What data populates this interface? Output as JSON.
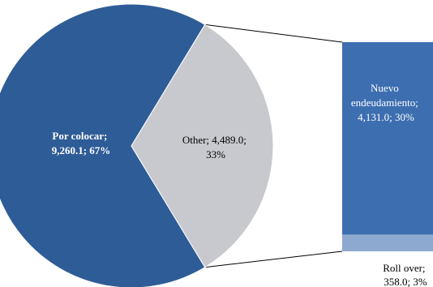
{
  "chart_data": {
    "type": "pie",
    "subtype": "bar-of-pie",
    "title": "",
    "slices": [
      {
        "label": "Por colocar",
        "value": 9260.1,
        "percent": 67,
        "color": "#2e5c97"
      },
      {
        "label": "Other",
        "value": 4489.0,
        "percent": 33,
        "color": "#c8c9ce"
      }
    ],
    "stack": [
      {
        "label": "Nuevo endeudamiento",
        "value": 4131.0,
        "percent": 30,
        "color": "#3d6eb0"
      },
      {
        "label": "Roll over",
        "value": 358.0,
        "percent": 3,
        "color": "#8ea9cf"
      }
    ],
    "data_labels": {
      "por_colocar": [
        "Por colocar;",
        "9,260.1; 67%"
      ],
      "other": [
        "Other; 4,489.0;",
        "33%"
      ],
      "nuevo": [
        "Nuevo",
        "endeudamiento;",
        "4,131.0;  30%"
      ],
      "rollover": [
        "Roll over;",
        "358.0; 3%"
      ]
    },
    "legend": "none"
  }
}
